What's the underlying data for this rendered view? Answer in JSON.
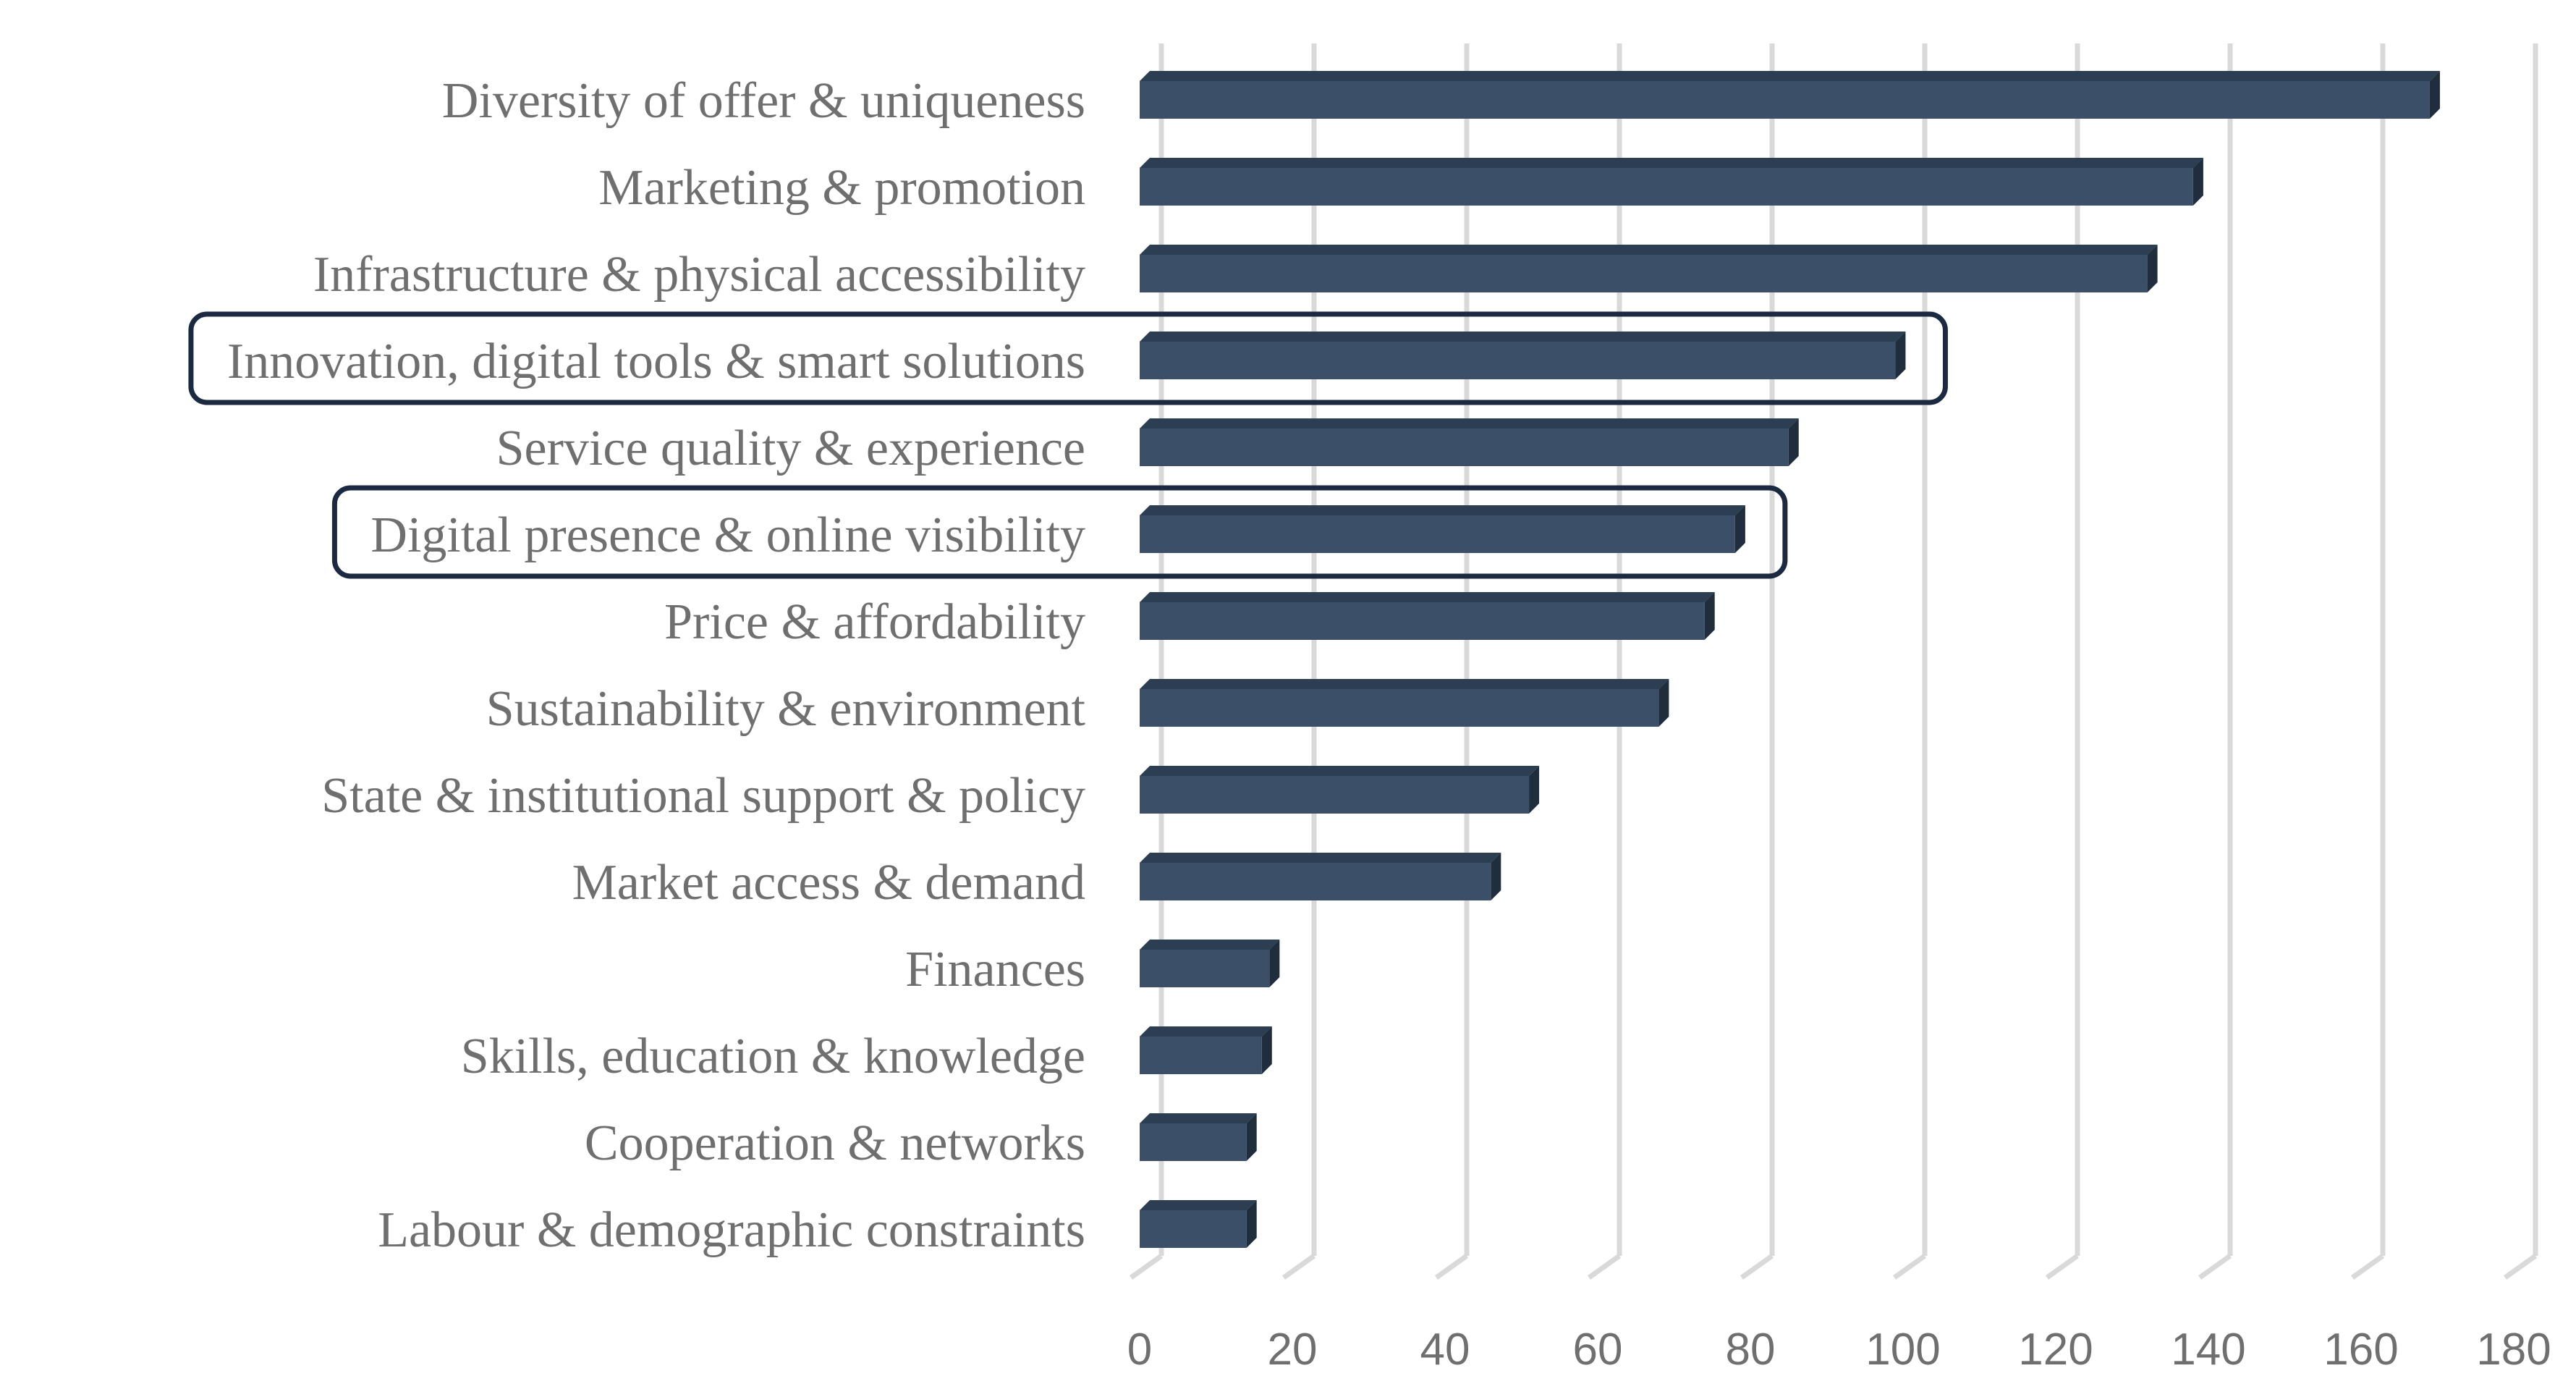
{
  "chart_data": {
    "type": "bar",
    "orientation": "horizontal",
    "title": "",
    "xlabel": "",
    "ylabel": "",
    "xlim": [
      0,
      180
    ],
    "xticks": [
      0,
      20,
      40,
      60,
      80,
      100,
      120,
      140,
      160,
      180
    ],
    "grid": true,
    "categories": [
      "Diversity of offer & uniqueness",
      "Marketing & promotion",
      "Infrastructure & physical accessibility",
      "Innovation, digital tools & smart solutions",
      "Service quality & experience",
      "Digital presence & online visibility",
      "Price & affordability",
      "Sustainability & environment",
      "State & institutional support & policy",
      "Market access & demand",
      "Finances",
      "Skills, education & knowledge",
      "Cooperation & networks",
      "Labour & demographic constraints"
    ],
    "values": [
      169,
      138,
      132,
      99,
      85,
      78,
      74,
      68,
      51,
      46,
      17,
      16,
      14,
      14
    ],
    "highlighted": [
      "Innovation, digital tools & smart solutions",
      "Digital presence & online visibility"
    ],
    "colors": {
      "bar": "#3b5068",
      "bar_top": "#2c3e52",
      "bar_side": "#1f2d3d",
      "grid": "#d9d9d9",
      "label": "#6f6f6f",
      "highlight_box": "#1b2a40"
    }
  }
}
